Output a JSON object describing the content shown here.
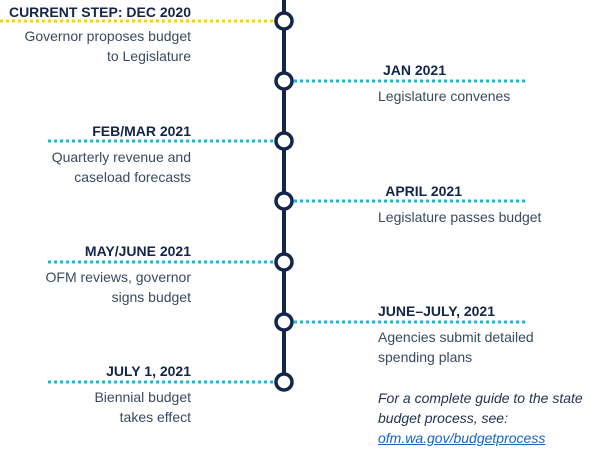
{
  "colors": {
    "axis": "#13254a",
    "connector": "#2ab3c8",
    "current": "#f2d21e",
    "node_fill": "#ffffff"
  },
  "events": [
    {
      "date": "CURRENT STEP: DEC 2020",
      "lines": [
        "Governor proposes budget",
        "to Legislature"
      ],
      "current": true
    },
    {
      "date": "JAN 2021",
      "lines": [
        "Legislature convenes"
      ]
    },
    {
      "date": "FEB/MAR 2021",
      "lines": [
        "Quarterly revenue and",
        "caseload forecasts"
      ]
    },
    {
      "date": "APRIL 2021",
      "lines": [
        "Legislature passes budget"
      ]
    },
    {
      "date": "MAY/JUNE 2021",
      "lines": [
        "OFM reviews, governor",
        "signs budget"
      ]
    },
    {
      "date": "JUNE–JULY, 2021",
      "lines": [
        "Agencies submit detailed",
        "spending plans"
      ]
    },
    {
      "date": "JULY 1, 2021",
      "lines": [
        "Biennial budget",
        "takes effect"
      ]
    }
  ],
  "note": {
    "line1": "For a complete guide to the state",
    "line2": "budget process, see:",
    "link": "ofm.wa.gov/budgetprocess"
  }
}
